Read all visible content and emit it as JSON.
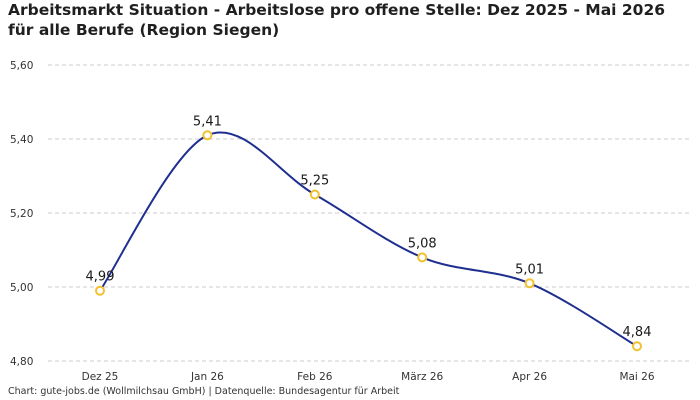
{
  "chart_data": {
    "type": "line",
    "title": "Arbeitsmarkt Situation - Arbeitslose pro offene Stelle: Dez 2025 - Mai 2026 für alle Berufe (Region Siegen)",
    "categories": [
      "Dez 25",
      "Jan 26",
      "Feb 26",
      "März 26",
      "Apr 26",
      "Mai 26"
    ],
    "series": [
      {
        "values": [
          4.99,
          5.41,
          5.25,
          5.08,
          5.01,
          4.84
        ],
        "labels": [
          "4,99",
          "5,41",
          "5,25",
          "5,08",
          "5,01",
          "4,84"
        ]
      }
    ],
    "yticks": [
      4.8,
      5.0,
      5.2,
      5.4,
      5.6
    ],
    "ytick_labels": [
      "4,80",
      "5,00",
      "5,20",
      "5,40",
      "5,60"
    ],
    "ylim": [
      4.8,
      5.6
    ],
    "xlabel": "",
    "ylabel": "",
    "grid": "horizontal-dashed",
    "legend": "none",
    "colors": {
      "line": "#1f2f8f",
      "marker_stroke": "#f2c12e",
      "marker_fill": "#ffffff",
      "grid": "#cccccc"
    }
  },
  "footer": {
    "source": "Chart: gute-jobs.de (Wollmilchsau GmbH) | Datenquelle: Bundesagentur für Arbeit"
  }
}
